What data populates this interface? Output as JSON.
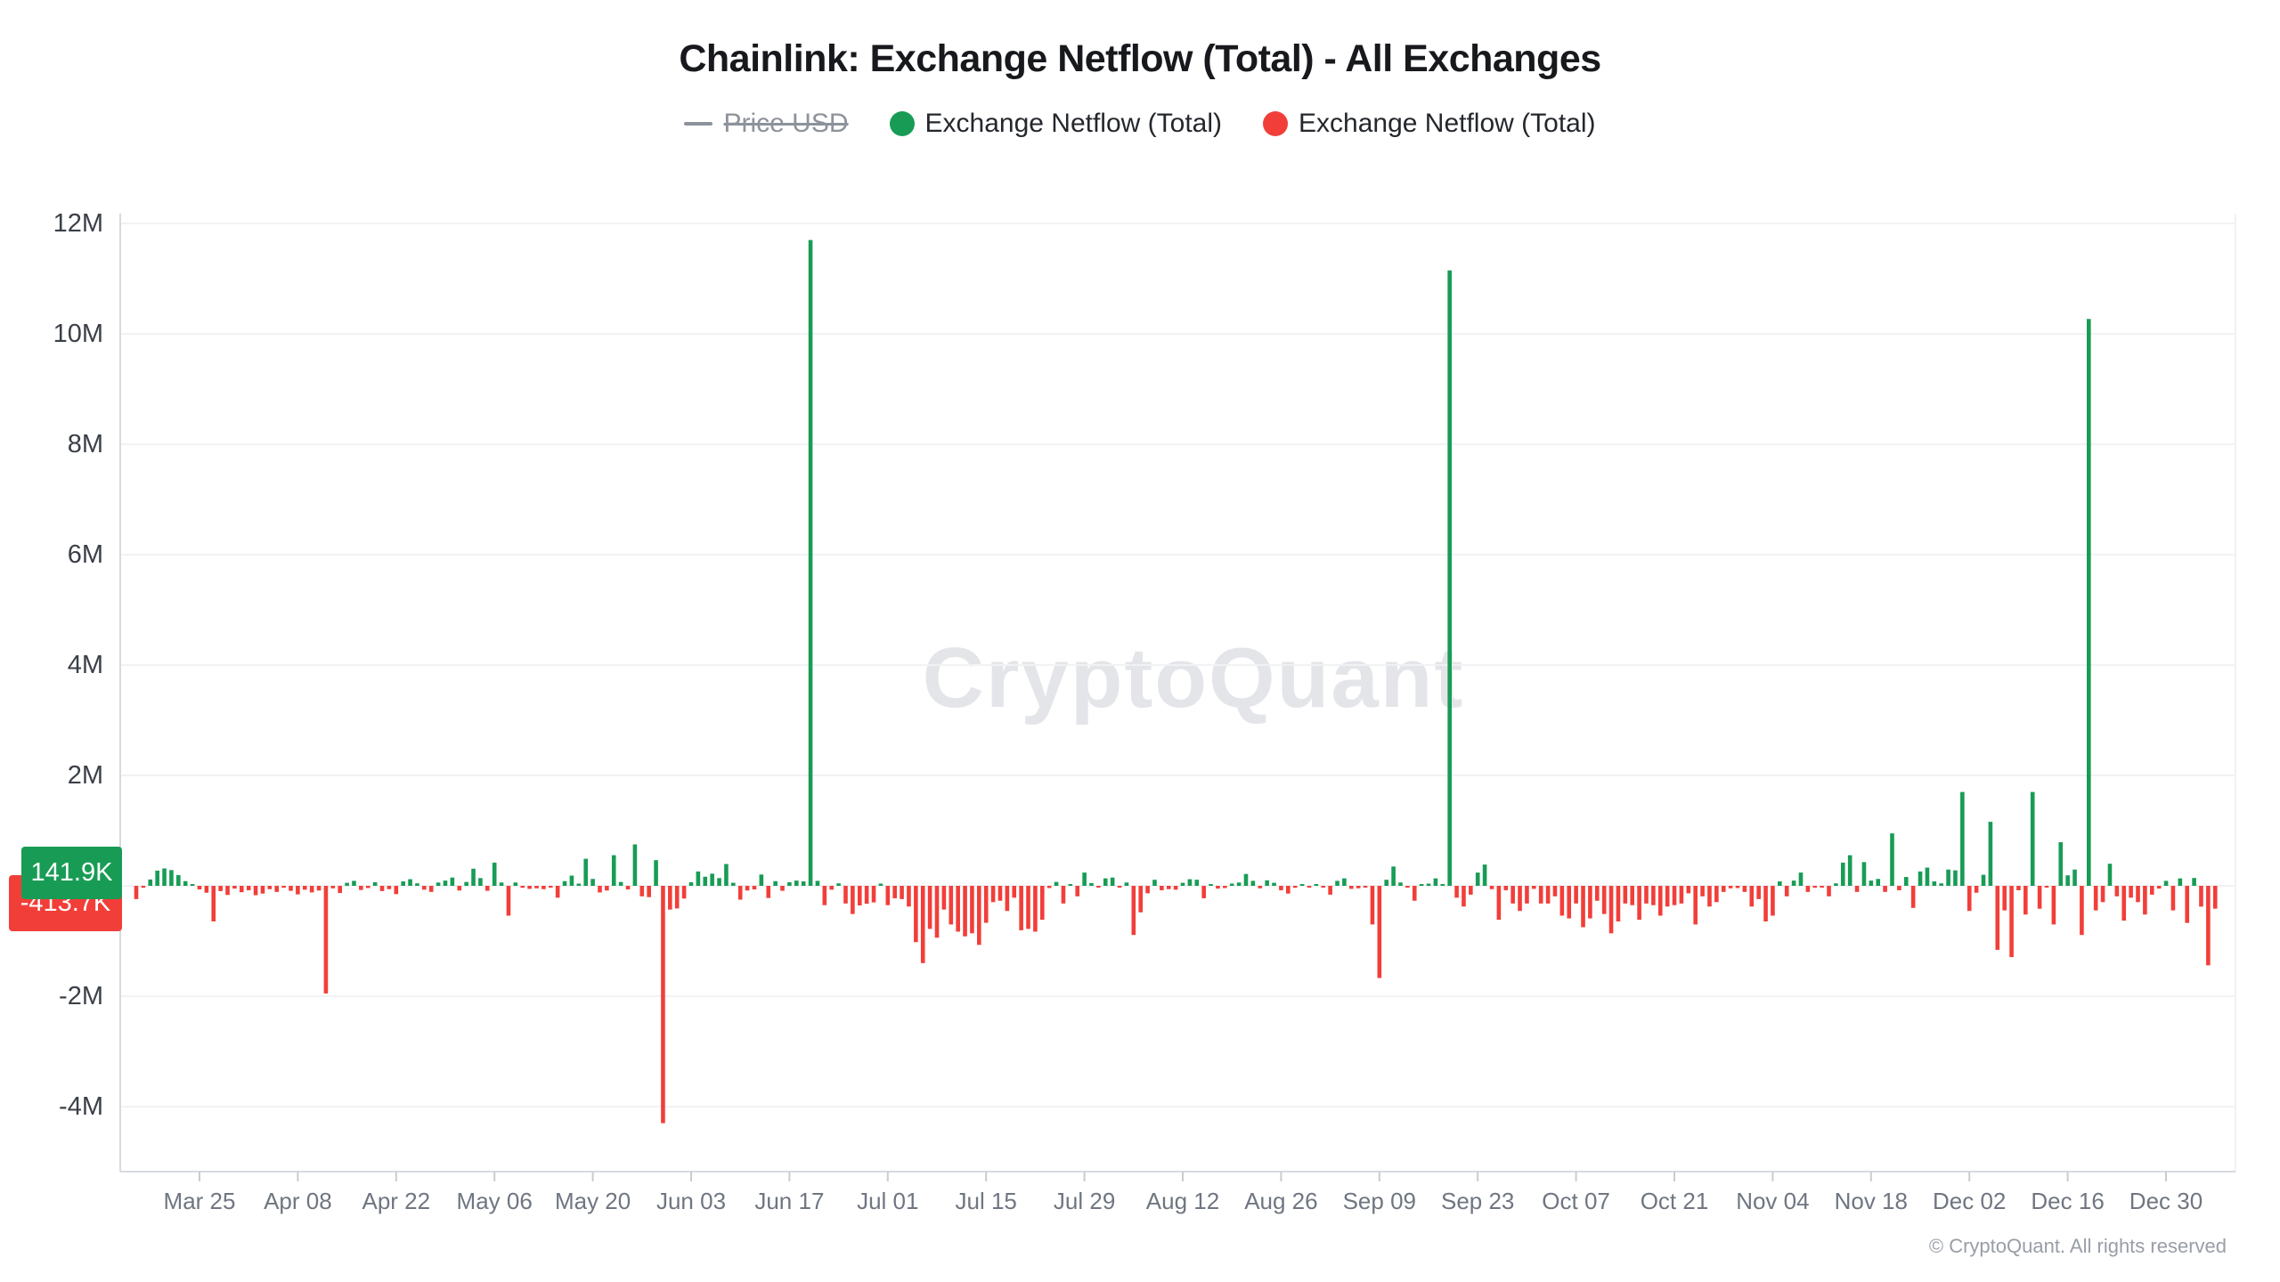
{
  "header": {
    "title": "Chainlink: Exchange Netflow (Total) - All Exchanges"
  },
  "legend": {
    "items": [
      {
        "label": "Price USD",
        "marker": "dash-icon",
        "color": "#8d929b",
        "disabled": true
      },
      {
        "label": "Exchange Netflow (Total)",
        "marker": "dot-icon",
        "color": "#189c55",
        "disabled": false
      },
      {
        "label": "Exchange Netflow (Total)",
        "marker": "dot-icon",
        "color": "#f23e39",
        "disabled": false
      }
    ]
  },
  "axis_badges": {
    "positive": {
      "label": "141.9K",
      "color": "#189c55"
    },
    "negative": {
      "label": "-413.7K",
      "color": "#f23e39"
    }
  },
  "watermark": {
    "text": "CryptoQuant"
  },
  "footer": {
    "attribution": "© CryptoQuant. All rights reserved"
  },
  "chart_data": {
    "type": "bar",
    "title": "Chainlink: Exchange Netflow (Total) - All Exchanges",
    "unit": "tokens, values in thousands (K); 1M = 1000K",
    "positive_color": "#189c55",
    "negative_color": "#f23e39",
    "grid": true,
    "legend_position": "top-center",
    "y_tick_labels": [
      "12M",
      "10M",
      "8M",
      "6M",
      "4M",
      "2M",
      "-2M",
      "-4M"
    ],
    "y_tick_values_K": [
      12000,
      10000,
      8000,
      6000,
      4000,
      2000,
      -2000,
      -4000
    ],
    "ylim_K": [
      -5180,
      12180
    ],
    "x_tick_labels": [
      "Mar 25",
      "Apr 08",
      "Apr 22",
      "May 06",
      "May 20",
      "Jun 03",
      "Jun 17",
      "Jul 01",
      "Jul 15",
      "Jul 29",
      "Aug 12",
      "Aug 26",
      "Sep 09",
      "Sep 23",
      "Oct 07",
      "Oct 21",
      "Nov 04",
      "Nov 18",
      "Dec 02",
      "Dec 16",
      "Dec 30"
    ],
    "x_start_label": "Mar 16",
    "x_end_label": "Jan 06",
    "daily_netflow_K": {
      "Mar": [
        -240,
        -35,
        115,
        275,
        315,
        285,
        195,
        85,
        30,
        -65,
        -125,
        -645,
        -95,
        -165,
        -50,
        -115
      ],
      "Apr": [
        -80,
        -170,
        -140,
        -60,
        -110,
        -35,
        -90,
        -155,
        -70,
        -120,
        -85,
        -1950,
        -45,
        -130,
        55,
        90,
        -75,
        -40,
        65,
        -95,
        -60,
        -150,
        80,
        120,
        45,
        -70,
        -110,
        60,
        95,
        150
      ],
      "May": [
        -85,
        70,
        310,
        140,
        -90,
        420,
        60,
        -540,
        60,
        -35,
        -55,
        -45,
        -60,
        -30,
        -215,
        85,
        185,
        40,
        490,
        125,
        -120,
        -85,
        555,
        70,
        -65,
        750,
        -190,
        -205,
        465,
        -4300,
        -430
      ],
      "Jun": [
        -410,
        -230,
        65,
        260,
        165,
        220,
        140,
        395,
        55,
        -250,
        -85,
        -65,
        205,
        -220,
        85,
        -90,
        65,
        95,
        80,
        11700,
        90,
        -350,
        -70,
        45,
        -320,
        -510,
        -355,
        -325,
        -300,
        40
      ],
      "Jul": [
        -350,
        -225,
        -240,
        -375,
        -1020,
        -1400,
        -780,
        -940,
        -430,
        -700,
        -830,
        -915,
        -860,
        -1070,
        -670,
        -295,
        -270,
        -455,
        -215,
        -805,
        -780,
        -830,
        -615,
        -40,
        70,
        -320,
        25,
        -190,
        240,
        50,
        -30
      ],
      "Aug": [
        135,
        150,
        -25,
        60,
        -890,
        -480,
        -135,
        110,
        -80,
        -60,
        -70,
        55,
        120,
        110,
        -225,
        30,
        -50,
        -40,
        40,
        60,
        215,
        90,
        -45,
        100,
        55,
        -80,
        -140,
        -35,
        25,
        -20,
        30
      ],
      "Sep": [
        -30,
        -160,
        90,
        135,
        -55,
        -45,
        -25,
        -700,
        -1670,
        110,
        350,
        60,
        -30,
        -270,
        25,
        40,
        135,
        30,
        11150,
        -215,
        -375,
        -160,
        240,
        385,
        -60,
        -615,
        -80,
        -320,
        -455,
        -320
      ],
      "Oct": [
        -55,
        -320,
        -320,
        -190,
        -540,
        -590,
        -320,
        -750,
        -590,
        -270,
        -510,
        -860,
        -645,
        -320,
        -350,
        -615,
        -320,
        -350,
        -540,
        -375,
        -350,
        -320,
        -135,
        -700,
        -190,
        -375,
        -295,
        -110,
        -45,
        -40,
        -110
      ],
      "Nov": [
        -375,
        -240,
        -645,
        -540,
        80,
        -190,
        95,
        240,
        -110,
        -35,
        -30,
        -190,
        45,
        420,
        555,
        -110,
        430,
        95,
        125,
        -110,
        950,
        -80,
        160,
        -400,
        260,
        330,
        80,
        45,
        295,
        280
      ],
      "Dec": [
        1700,
        -455,
        -125,
        200,
        1160,
        -1160,
        -445,
        -1290,
        -80,
        -520,
        1700,
        -415,
        -25,
        -700,
        790,
        190,
        295,
        -890,
        10270,
        -445,
        -295,
        400,
        -190,
        -630,
        -215,
        -295,
        -520,
        -160,
        -50,
        90,
        -445
      ],
      "Jan": [
        134,
        -672,
        141.9,
        -376,
        -1440,
        -413.7
      ]
    },
    "notable_points": [
      {
        "date": "Jun 20",
        "value_K": 11700
      },
      {
        "date": "Sep 19",
        "value_K": 11150
      },
      {
        "date": "Dec 19",
        "value_K": 10270
      },
      {
        "date": "May 30",
        "value_K": -4300
      },
      {
        "date": "Apr 12",
        "value_K": -1950
      },
      {
        "date": "Sep 09",
        "value_K": -1670
      },
      {
        "date": "Jul 06",
        "value_K": -1400
      },
      {
        "date": "Jan 05",
        "value_K": -1440
      }
    ],
    "latest_values": {
      "positive_series_K": 141.9,
      "negative_series_K": -413.7
    }
  }
}
